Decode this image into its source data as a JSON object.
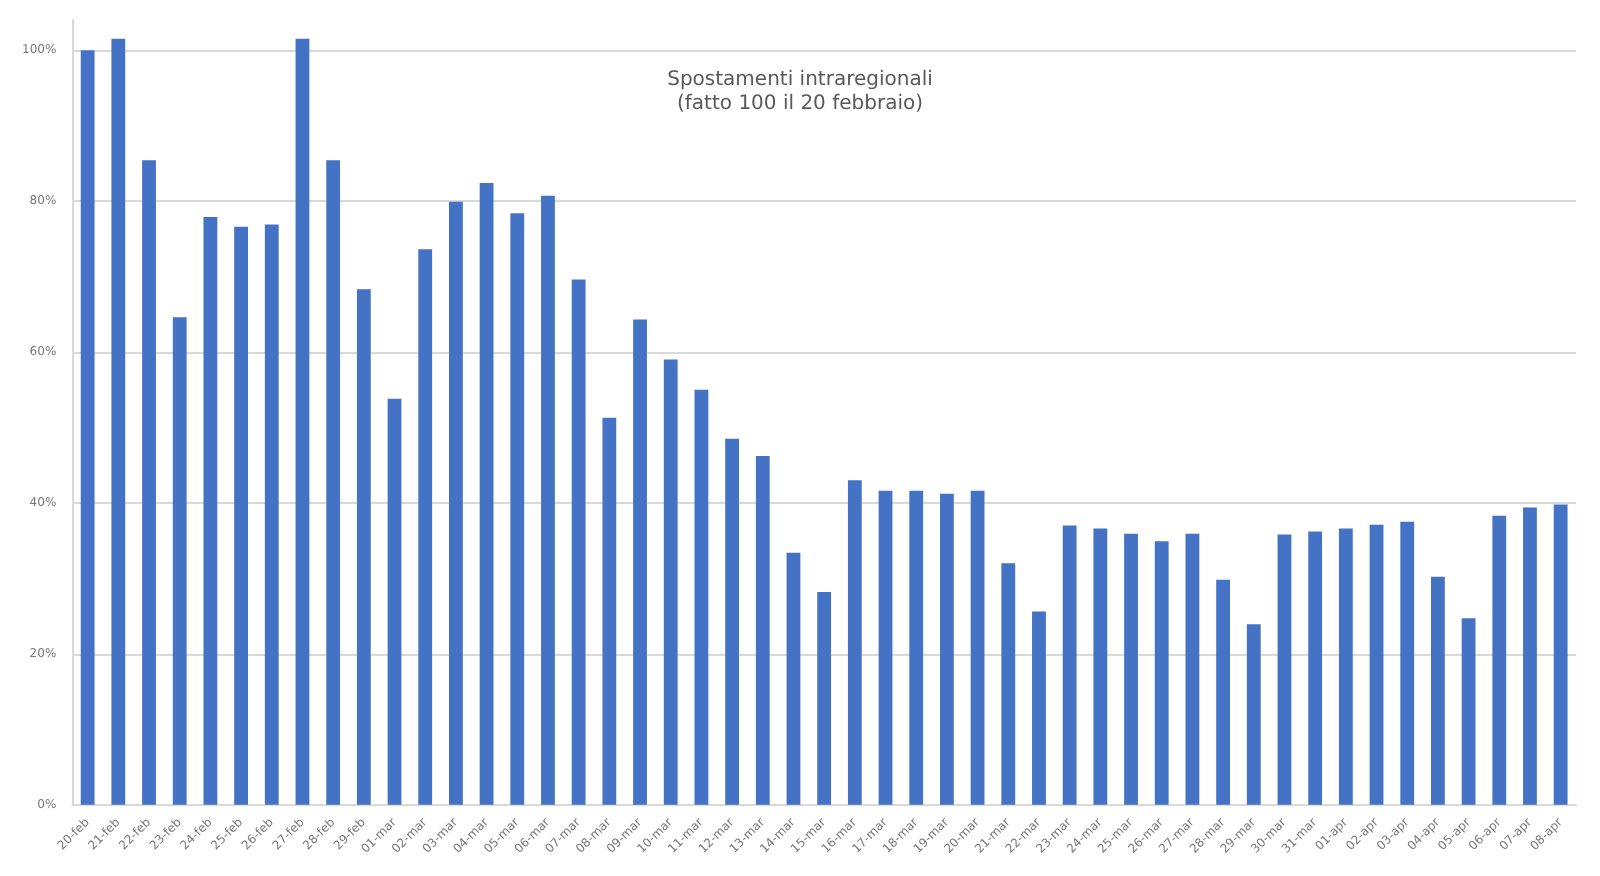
{
  "chart_data": {
    "type": "bar",
    "title": "Spostamenti intraregionali",
    "subtitle": "(fatto 100 il 20 febbraio)",
    "categories": [
      "20-feb",
      "21-feb",
      "22-feb",
      "23-feb",
      "24-feb",
      "25-feb",
      "26-feb",
      "27-feb",
      "28-feb",
      "29-feb",
      "01-mar",
      "02-mar",
      "03-mar",
      "04-mar",
      "05-mar",
      "06-mar",
      "07-mar",
      "08-mar",
      "09-mar",
      "10-mar",
      "11-mar",
      "12-mar",
      "13-mar",
      "14-mar",
      "15-mar",
      "16-mar",
      "17-mar",
      "18-mar",
      "19-mar",
      "20-mar",
      "21-mar",
      "22-mar",
      "23-mar",
      "24-mar",
      "25-mar",
      "26-mar",
      "27-mar",
      "28-mar",
      "29-mar",
      "30-mar",
      "31-mar",
      "01-apr",
      "02-apr",
      "03-apr",
      "04-apr",
      "05-apr",
      "06-apr",
      "07-apr",
      "08-apr"
    ],
    "values": [
      100,
      101.5,
      85.4,
      64.6,
      77.9,
      76.6,
      76.9,
      101.5,
      85.4,
      68.3,
      53.8,
      73.6,
      79.9,
      82.4,
      78.4,
      80.7,
      69.6,
      51.3,
      64.3,
      59,
      55,
      48.5,
      46.2,
      33.4,
      28.2,
      43,
      41.6,
      41.6,
      41.2,
      41.6,
      32,
      25.6,
      37,
      36.6,
      35.9,
      34.9,
      35.9,
      29.8,
      23.9,
      35.8,
      36.2,
      36.6,
      37.1,
      37.5,
      30.2,
      24.7,
      38.3,
      39.4,
      39.8
    ],
    "color": "#4472c4",
    "ylim": [
      0,
      104
    ],
    "yticks": [
      {
        "value": 0,
        "label": "0%"
      },
      {
        "value": 20,
        "label": "20%"
      },
      {
        "value": 40,
        "label": "40%"
      },
      {
        "value": 60,
        "label": "60%"
      },
      {
        "value": 80,
        "label": "80%"
      },
      {
        "value": 100,
        "label": "100%"
      }
    ],
    "grid": true
  }
}
